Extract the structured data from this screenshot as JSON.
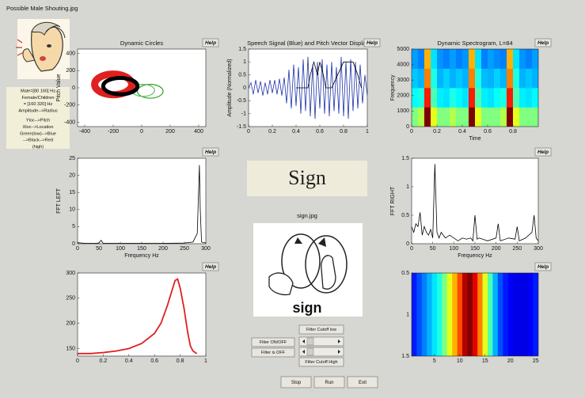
{
  "window_title": "Possible Male Shouting.jpg",
  "info_lines": [
    "Male=[80 160] Hz",
    "Female/Children",
    "= [160 320] Hz",
    "Amplitude-->Radius",
    "Yloc-->Pitch",
    "Xloc-->Location",
    "Green(low)-->Blue",
    "-->Black-->Red",
    "(high)"
  ],
  "help_button": "Help",
  "display_word": "Sign",
  "image_caption": "sign.jpg",
  "image_text": "sign",
  "filter": {
    "cutoff_low_label": "Filter Cutoff low",
    "cutoff_high_label": "Filter Cutoff High",
    "toggle_button": "Filter ON/OFF",
    "status": "Filter is OFF"
  },
  "buttons": [
    "Stop",
    "Run",
    "Exit"
  ],
  "chart_data": [
    {
      "type": "circles",
      "title": "Dynamic Circles",
      "ylabel": "Pitch Value",
      "xlim": [
        -450,
        450
      ],
      "ylim": [
        -450,
        450
      ],
      "xticks": [
        -400,
        -200,
        0,
        200,
        400
      ],
      "yticks": [
        -400,
        -200,
        0,
        200,
        400
      ],
      "circles": [
        {
          "color": "#2ca02c",
          "x": 60,
          "y": -40,
          "rx": 90,
          "ry": 80,
          "width": 1.2
        },
        {
          "color": "#5bbf5b",
          "x": 10,
          "y": -30,
          "rx": 80,
          "ry": 70,
          "width": 1.2
        },
        {
          "color": "#e02020",
          "x": -200,
          "y": 40,
          "rx": 130,
          "ry": 120,
          "width": 9
        },
        {
          "color": "#000000",
          "x": -150,
          "y": 20,
          "rx": 120,
          "ry": 95,
          "width": 5
        }
      ]
    },
    {
      "type": "line",
      "title": "Speech Signal (Blue) and Pitch Vector Display",
      "ylabel": "Amplitude (Normalized)",
      "xlim": [
        0,
        1
      ],
      "ylim": [
        -1.5,
        1.5
      ],
      "xticks": [
        0,
        0.2,
        0.4,
        0.6,
        0.8,
        1
      ],
      "yticks": [
        -1.5,
        -1,
        -0.5,
        0,
        0.5,
        1,
        1.5
      ],
      "series": [
        {
          "color": "#1f34a8",
          "x": [
            0,
            0.02,
            0.04,
            0.06,
            0.08,
            0.1,
            0.12,
            0.14,
            0.16,
            0.18,
            0.2,
            0.22,
            0.24,
            0.26,
            0.28,
            0.3,
            0.32,
            0.34,
            0.36,
            0.38,
            0.4,
            0.42,
            0.44,
            0.46,
            0.48,
            0.5,
            0.52,
            0.54,
            0.56,
            0.58,
            0.6,
            0.62,
            0.64,
            0.66,
            0.68,
            0.7,
            0.72,
            0.74,
            0.76,
            0.78,
            0.8,
            0.82,
            0.84,
            0.86,
            0.88,
            0.9,
            0.92,
            0.94,
            0.96,
            0.98,
            1
          ],
          "values": [
            0,
            0.2,
            -0.25,
            0.3,
            -0.2,
            0.25,
            -0.3,
            0.2,
            -0.25,
            0.3,
            -0.2,
            0.3,
            -0.25,
            0.35,
            -0.3,
            0.4,
            -0.6,
            0.7,
            -0.8,
            0.9,
            -0.7,
            0.8,
            -1.0,
            1.1,
            -0.9,
            1.2,
            -1.1,
            0.9,
            -1.2,
            1.0,
            -0.8,
            1.1,
            -1.0,
            0.9,
            -1.1,
            1.0,
            -0.9,
            0.8,
            -1.0,
            1.2,
            -1.1,
            1.0,
            -1.2,
            1.1,
            -0.9,
            1.0,
            -0.8,
            0.9,
            -0.6,
            0.5,
            -0.3
          ]
        },
        {
          "color": "#000000",
          "x": [
            0.4,
            0.5,
            0.52,
            0.55,
            0.58,
            0.6,
            0.63,
            0.65,
            0.7,
            0.75,
            0.8,
            0.83,
            0.88,
            0.92,
            0.95
          ],
          "values": [
            0,
            0,
            0.5,
            1,
            0.5,
            1,
            0.5,
            0,
            0,
            0.5,
            1,
            1,
            1,
            0.5,
            0
          ]
        }
      ]
    },
    {
      "type": "heatmap",
      "title": "Dynamic Spectrogram, L=84",
      "xlabel": "Time",
      "ylabel": "Frequency",
      "xlim": [
        0,
        1
      ],
      "ylim": [
        0,
        5000
      ],
      "xticks": [
        0,
        0.2,
        0.4,
        0.6,
        0.8
      ],
      "yticks": [
        0,
        1000,
        2000,
        3000,
        4000,
        5000
      ],
      "colormap": "jet",
      "clim": [
        0,
        1
      ],
      "z": [
        [
          0.5,
          0.55,
          1.0,
          0.6,
          0.5,
          0.5,
          0.55,
          0.5,
          0.5,
          1.0,
          0.6,
          0.5,
          0.5,
          0.5,
          0.55,
          1.0,
          0.6,
          0.5,
          0.5,
          0.5
        ],
        [
          0.38,
          0.4,
          0.85,
          0.45,
          0.36,
          0.35,
          0.4,
          0.37,
          0.35,
          0.85,
          0.45,
          0.36,
          0.35,
          0.38,
          0.4,
          0.85,
          0.45,
          0.36,
          0.35,
          0.37
        ],
        [
          0.32,
          0.3,
          0.75,
          0.4,
          0.3,
          0.33,
          0.3,
          0.32,
          0.3,
          0.75,
          0.4,
          0.31,
          0.3,
          0.33,
          0.3,
          0.75,
          0.4,
          0.3,
          0.32,
          0.3
        ],
        [
          0.28,
          0.25,
          0.7,
          0.35,
          0.27,
          0.25,
          0.28,
          0.25,
          0.27,
          0.7,
          0.35,
          0.25,
          0.28,
          0.26,
          0.25,
          0.7,
          0.35,
          0.27,
          0.25,
          0.28
        ]
      ]
    },
    {
      "type": "line",
      "xlabel": "Frequency Hz",
      "ylabel": "FFT LEFT",
      "xlim": [
        0,
        300
      ],
      "ylim": [
        0,
        25
      ],
      "xticks": [
        0,
        50,
        100,
        150,
        200,
        250,
        300
      ],
      "yticks": [
        0,
        5,
        10,
        15,
        20,
        25
      ],
      "series": [
        {
          "color": "#000000",
          "x": [
            0,
            10,
            20,
            40,
            50,
            55,
            60,
            100,
            150,
            200,
            250,
            270,
            280,
            283,
            285,
            287,
            290,
            300
          ],
          "values": [
            0.3,
            0.2,
            0.1,
            0.1,
            0.2,
            1,
            0.1,
            0.1,
            0.1,
            0.1,
            0.2,
            0.5,
            3,
            15,
            23,
            10,
            0.5,
            0.2
          ]
        }
      ]
    },
    {
      "type": "line",
      "xlabel": "Frequency Hz",
      "ylabel": "FFT RIGHT",
      "xlim": [
        0,
        300
      ],
      "ylim": [
        0,
        1.5
      ],
      "xticks": [
        0,
        50,
        100,
        150,
        200,
        250,
        300
      ],
      "yticks": [
        0,
        0.5,
        1,
        1.5
      ],
      "series": [
        {
          "color": "#000000",
          "x": [
            0,
            5,
            10,
            15,
            20,
            25,
            30,
            35,
            40,
            45,
            50,
            55,
            60,
            65,
            70,
            80,
            90,
            100,
            110,
            120,
            130,
            140,
            145,
            150,
            155,
            160,
            180,
            200,
            205,
            210,
            230,
            245,
            250,
            255,
            270,
            285,
            290,
            295,
            300
          ],
          "values": [
            0.3,
            0.2,
            0.35,
            0.3,
            0.55,
            0.15,
            0.3,
            0.2,
            0.15,
            0.25,
            0.1,
            1.4,
            0.2,
            0.1,
            0.2,
            0.1,
            0.15,
            0.1,
            0.05,
            0.1,
            0.08,
            0.1,
            0.05,
            0.5,
            0.08,
            0.1,
            0.05,
            0.1,
            0.35,
            0.05,
            0.1,
            0.08,
            0.3,
            0.05,
            0.1,
            0.2,
            0.5,
            0.1,
            0.05
          ]
        }
      ]
    },
    {
      "type": "line",
      "xlim": [
        0,
        1
      ],
      "ylim": [
        135,
        300
      ],
      "xticks": [
        0,
        0.2,
        0.4,
        0.6,
        0.8,
        1
      ],
      "yticks": [
        150,
        200,
        250,
        300
      ],
      "series": [
        {
          "color": "#e02020",
          "x": [
            0,
            0.1,
            0.2,
            0.3,
            0.4,
            0.5,
            0.6,
            0.65,
            0.7,
            0.73,
            0.76,
            0.78,
            0.8,
            0.83,
            0.86,
            0.88,
            0.9,
            0.93
          ],
          "values": [
            140,
            140,
            142,
            145,
            150,
            160,
            180,
            200,
            235,
            260,
            285,
            288,
            270,
            230,
            180,
            155,
            145,
            140
          ]
        }
      ]
    },
    {
      "type": "heatmap",
      "yreverse": true,
      "xlim": [
        0.5,
        25.5
      ],
      "ylim": [
        0.5,
        1.5
      ],
      "xticks": [
        5,
        10,
        15,
        20,
        25
      ],
      "yticks": [
        0.5,
        1,
        1.5
      ],
      "colormap": "jet",
      "clim": [
        0,
        1
      ],
      "z": [
        [
          0.15,
          0.2,
          0.25,
          0.3,
          0.35,
          0.4,
          0.5,
          0.6,
          0.7,
          0.8,
          0.95,
          1.0,
          0.9,
          0.75,
          0.6,
          0.45,
          0.3,
          0.2,
          0.15,
          0.12,
          0.1,
          0.1,
          0.1,
          0.12,
          0.15
        ]
      ]
    }
  ]
}
